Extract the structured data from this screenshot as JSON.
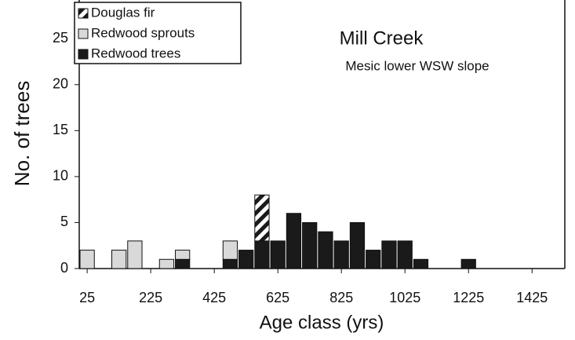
{
  "chart_data": {
    "type": "histogram",
    "title": "Mill Creek",
    "subtitle": "Mesic lower WSW slope",
    "x_label": "Age class (yrs)",
    "y_label": "No. of trees",
    "bins": [
      0,
      50,
      100,
      150,
      200,
      250,
      300,
      350,
      400,
      450,
      500,
      550,
      600,
      650,
      700,
      750,
      800,
      850,
      900,
      950,
      1000,
      1050,
      1100,
      1150,
      1200,
      1250,
      1300,
      1350,
      1400,
      1450,
      1500
    ],
    "series": [
      {
        "name": "Douglas fir",
        "color": "#1a1a1a",
        "pattern": "diagonal",
        "values": [
          0,
          0,
          0,
          0,
          0,
          0,
          0,
          0,
          0,
          0,
          0,
          5,
          0,
          0,
          0,
          0,
          0,
          0,
          0,
          0,
          0,
          0,
          0,
          0,
          0,
          0,
          0,
          0,
          0,
          0
        ]
      },
      {
        "name": "Redwood sprouts",
        "color": "#d9d9d9",
        "values": [
          2,
          0,
          2,
          3,
          0,
          1,
          1,
          0,
          0,
          2,
          0,
          0,
          0,
          0,
          0,
          0,
          0,
          0,
          0,
          0,
          0,
          0,
          0,
          0,
          0,
          0,
          0,
          0,
          0,
          0
        ]
      },
      {
        "name": "Redwood trees",
        "color": "#1a1a1a",
        "values": [
          0,
          0,
          0,
          0,
          0,
          0,
          1,
          0,
          0,
          1,
          2,
          3,
          3,
          6,
          5,
          4,
          3,
          5,
          2,
          3,
          3,
          1,
          0,
          0,
          1,
          0,
          0,
          0,
          0,
          0
        ]
      }
    ],
    "stacked": true,
    "xlim": [
      0,
      1528
    ],
    "ylim": [
      0,
      29.2
    ],
    "xticks": [
      25,
      225,
      425,
      625,
      825,
      1025,
      1225,
      1425
    ],
    "yticks": [
      0,
      5,
      10,
      15,
      20,
      25
    ],
    "legend": "upper left"
  }
}
